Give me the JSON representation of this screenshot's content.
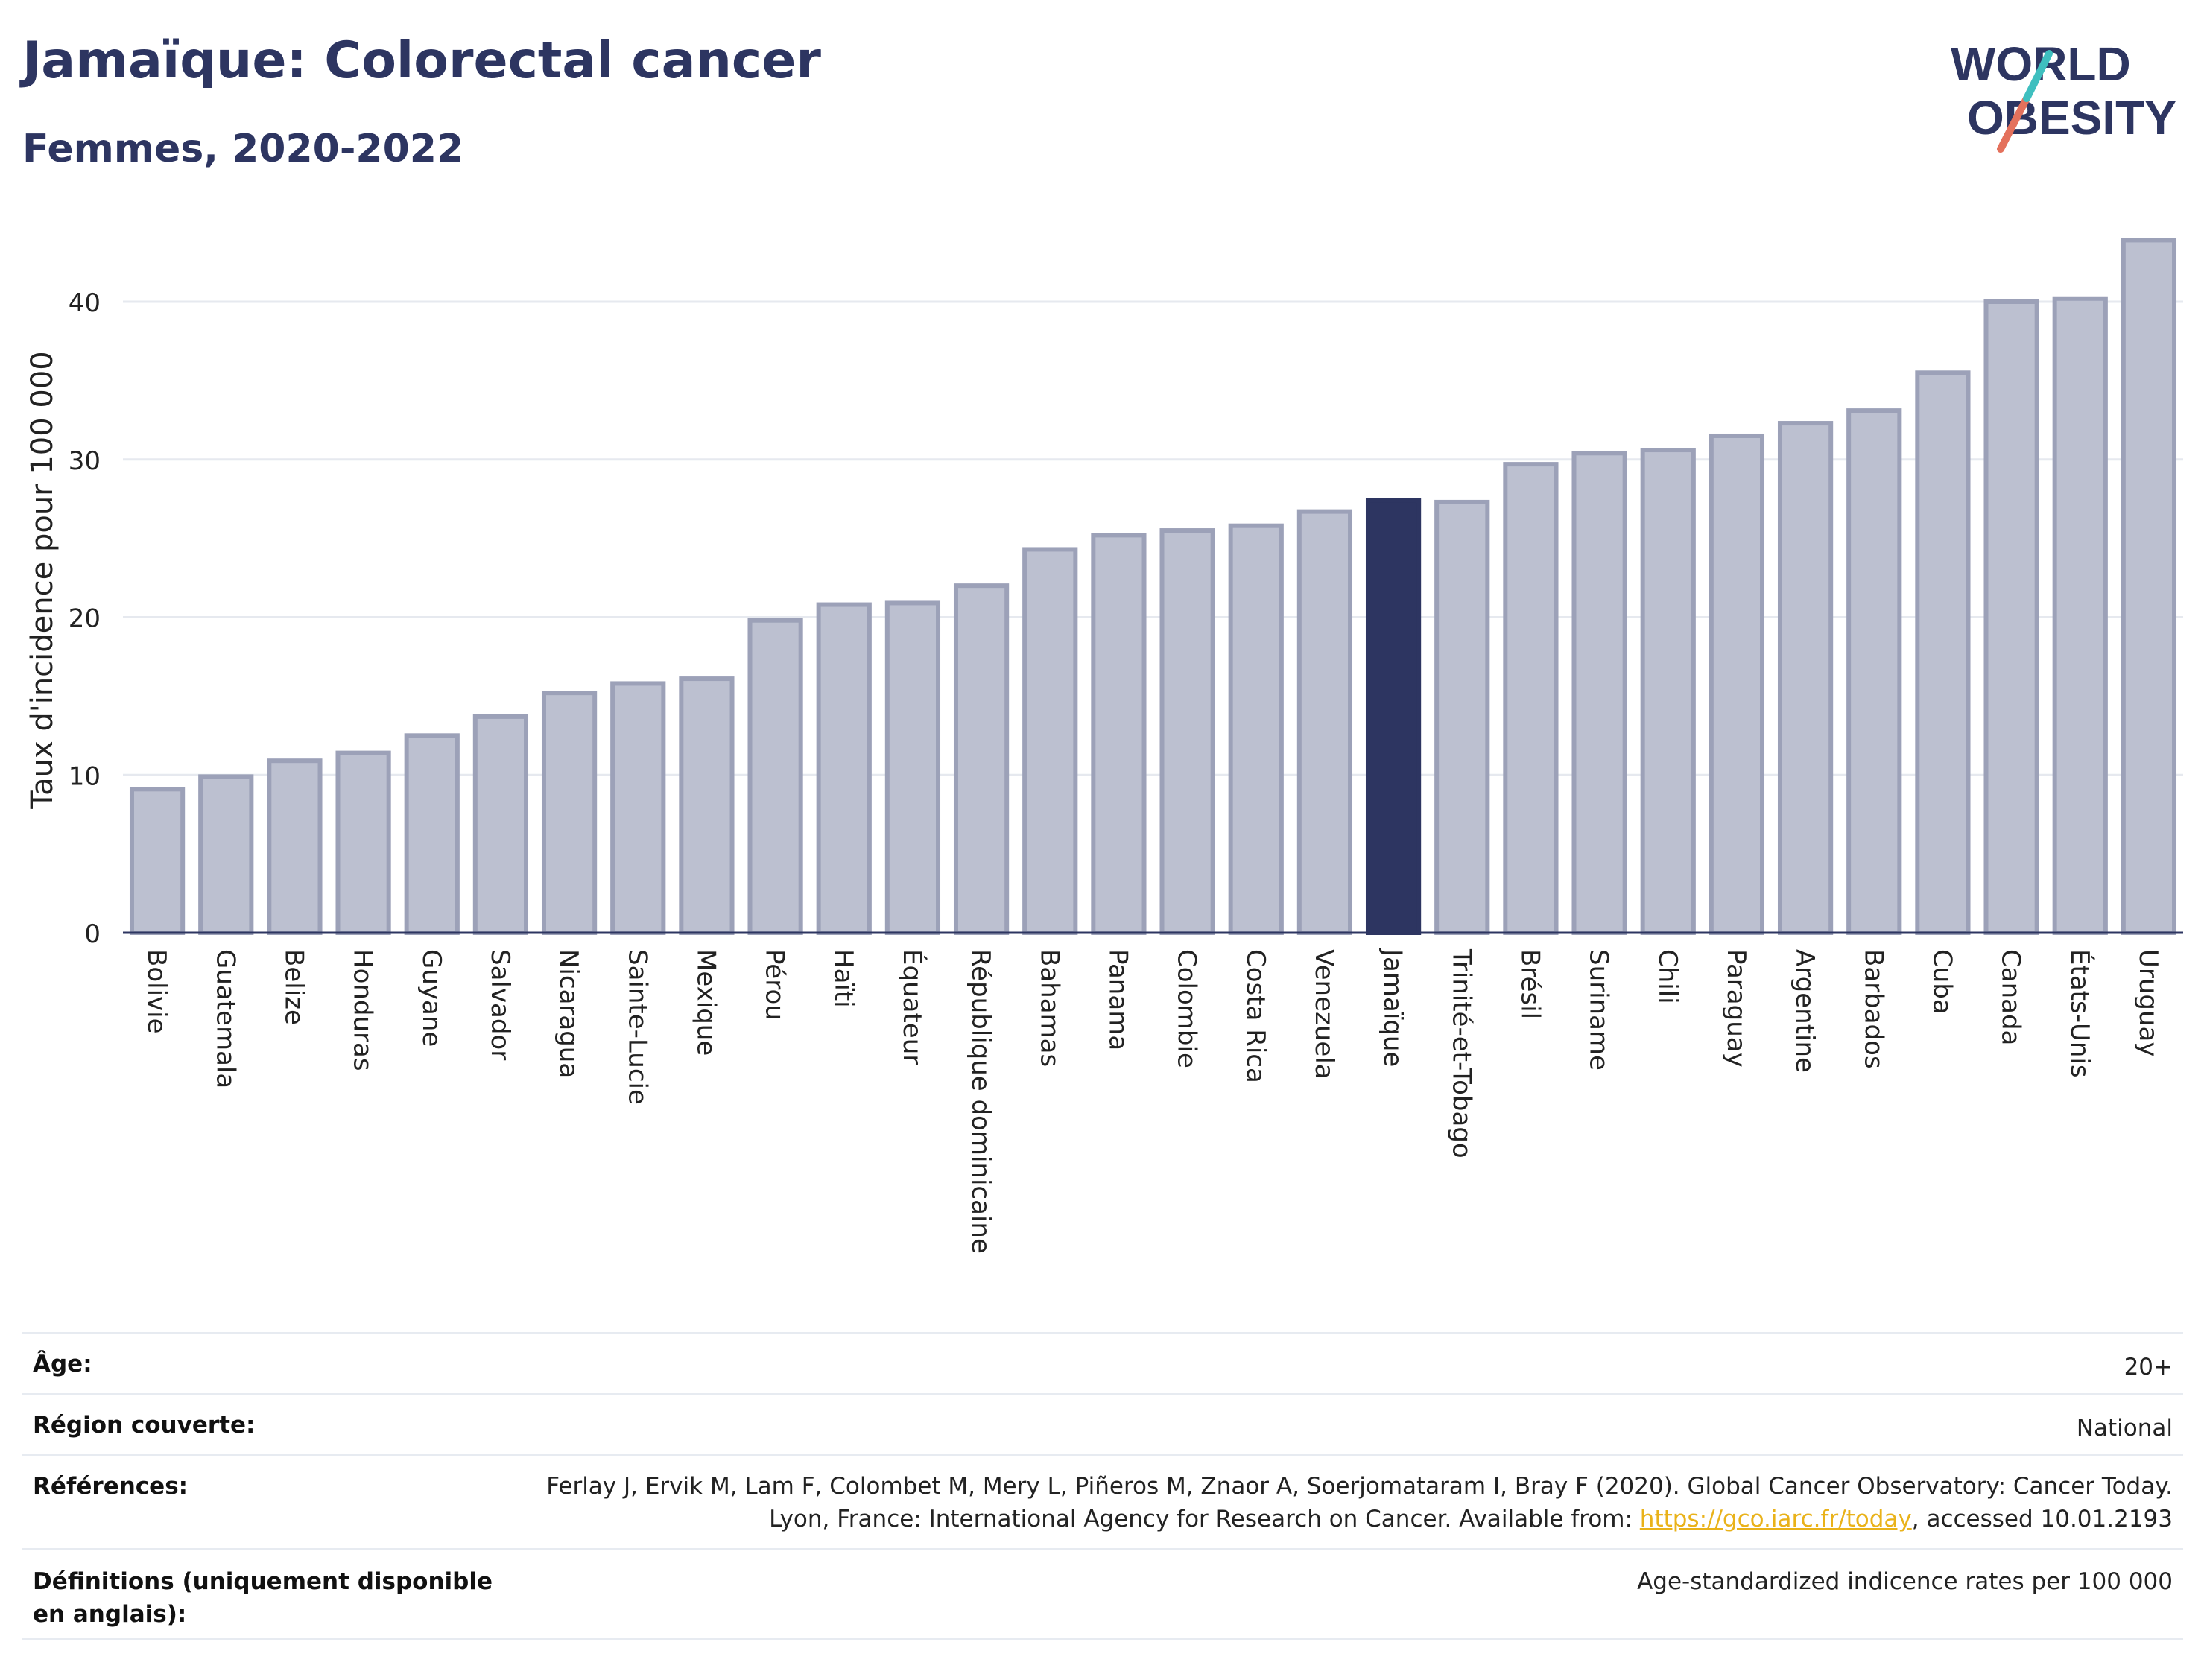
{
  "header": {
    "title": "Jamaïque: Colorectal cancer",
    "subtitle": "Femmes, 2020-2022",
    "logo_line1": "WORLD",
    "logo_line2": "OBESITY"
  },
  "colors": {
    "bar": "#bcc0d0",
    "bar_stroke": "#9ca1b8",
    "highlight": "#2d3561",
    "title": "#2d3561",
    "link": "#e9b21a",
    "logo_teal": "#3fbfbf",
    "logo_coral": "#e4715c"
  },
  "chart_data": {
    "type": "bar",
    "ylabel": "Taux d'incidence pour 100 000",
    "xlabel": "",
    "ylim": [
      0,
      45
    ],
    "yticks": [
      0,
      10,
      20,
      30,
      40
    ],
    "grid": true,
    "highlight": "Jamaïque",
    "categories": [
      "Bolivie",
      "Guatemala",
      "Belize",
      "Honduras",
      "Guyane",
      "Salvador",
      "Nicaragua",
      "Sainte-Lucie",
      "Mexique",
      "Pérou",
      "Haïti",
      "Équateur",
      "République dominicaine",
      "Bahamas",
      "Panama",
      "Colombie",
      "Costa Rica",
      "Venezuela",
      "Jamaïque",
      "Trinité-et-Tobago",
      "Brésil",
      "Suriname",
      "Chili",
      "Paraguay",
      "Argentine",
      "Barbados",
      "Cuba",
      "Canada",
      "États-Unis",
      "Uruguay"
    ],
    "values": [
      9.1,
      9.9,
      10.9,
      11.4,
      12.5,
      13.7,
      15.2,
      15.8,
      16.1,
      19.8,
      20.8,
      20.9,
      22.0,
      24.3,
      25.2,
      25.5,
      25.8,
      26.7,
      27.4,
      27.3,
      29.7,
      30.4,
      30.6,
      31.5,
      32.3,
      33.1,
      35.5,
      40.0,
      40.2,
      43.9
    ]
  },
  "meta": {
    "age_label": "Âge:",
    "age_value": "20+",
    "region_label": "Région couverte:",
    "region_value": "National",
    "refs_label": "Références:",
    "refs_text_1": "Ferlay J, Ervik M, Lam F, Colombet M, Mery L, Piñeros M, Znaor A, Soerjomataram I, Bray F (2020). Global Cancer Observatory: Cancer Today. Lyon, France: International Agency for Research on Cancer. Available from: ",
    "refs_link": "https://gco.iarc.fr/today",
    "refs_text_2": ", accessed 10.01.2193",
    "defs_label": "Définitions (uniquement disponible en anglais):",
    "defs_value": "Age-standardized indicence rates per 100 000"
  }
}
